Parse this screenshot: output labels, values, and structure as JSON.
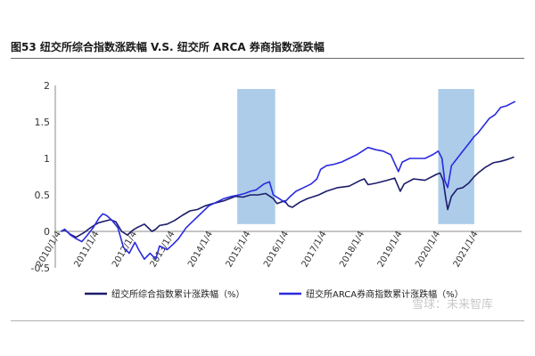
{
  "title": "图53 纽交所综合指数涨跌幅 V.S. 纽交所 ARCA 券商指数涨跌幅",
  "watermark": "雪球：未来智库",
  "colors": {
    "series_nyse": "#1c1c6b",
    "series_arca": "#2a2ae0",
    "highlight": "#9ec3e6",
    "axis": "#888888"
  },
  "chart_data": {
    "type": "line",
    "title": "图53 纽交所综合指数涨跌幅 V.S. 纽交所 ARCA 券商指数涨跌幅",
    "x_range": [
      2009.85,
      2022.15
    ],
    "ylim": [
      -0.5,
      2
    ],
    "yticks": [
      -0.5,
      0,
      0.5,
      1,
      1.5,
      2
    ],
    "ytick_labels": [
      "-0.5",
      "0",
      "0.5",
      "1",
      "1.5",
      "2"
    ],
    "xticks": [
      2010,
      2011,
      2012,
      2013,
      2014,
      2015,
      2016,
      2017,
      2018,
      2019,
      2020,
      2021
    ],
    "xtick_labels": [
      "2010/1/4",
      "2011/1/4",
      "2012/1/4",
      "2013/1/4",
      "2014/1/4",
      "2015/1/4",
      "2016/1/4",
      "2017/1/4",
      "2018/1/4",
      "2019/1/4",
      "2020/1/4",
      "2021/1/4"
    ],
    "highlight_periods": [
      [
        2014.65,
        2015.65
      ],
      [
        2019.95,
        2020.9
      ]
    ],
    "legend_position": "bottom",
    "series": [
      {
        "name": "纽交所综合指数累计涨跌幅（%）",
        "color": "#1c1c6b",
        "x": [
          2010.0,
          2010.1,
          2010.25,
          2010.4,
          2010.5,
          2010.6,
          2010.75,
          2010.9,
          2011.0,
          2011.15,
          2011.3,
          2011.45,
          2011.6,
          2011.75,
          2011.9,
          2012.0,
          2012.2,
          2012.4,
          2012.5,
          2012.6,
          2012.8,
          2013.0,
          2013.2,
          2013.4,
          2013.6,
          2013.8,
          2014.0,
          2014.3,
          2014.6,
          2014.8,
          2015.0,
          2015.2,
          2015.4,
          2015.6,
          2015.7,
          2015.9,
          2016.0,
          2016.1,
          2016.3,
          2016.5,
          2016.8,
          2017.0,
          2017.3,
          2017.6,
          2017.9,
          2018.0,
          2018.1,
          2018.3,
          2018.6,
          2018.8,
          2018.95,
          2019.05,
          2019.3,
          2019.6,
          2019.9,
          2020.0,
          2020.08,
          2020.15,
          2020.2,
          2020.3,
          2020.45,
          2020.6,
          2020.75,
          2020.9,
          2021.0,
          2021.2,
          2021.4,
          2021.6,
          2021.8,
          2021.95
        ],
        "y": [
          0.0,
          0.02,
          -0.04,
          -0.08,
          -0.05,
          -0.02,
          0.04,
          0.09,
          0.12,
          0.14,
          0.16,
          0.13,
          0.0,
          -0.05,
          0.02,
          0.05,
          0.1,
          0.0,
          0.03,
          0.08,
          0.1,
          0.15,
          0.22,
          0.28,
          0.3,
          0.35,
          0.38,
          0.42,
          0.48,
          0.47,
          0.5,
          0.5,
          0.52,
          0.45,
          0.38,
          0.42,
          0.35,
          0.33,
          0.4,
          0.45,
          0.5,
          0.55,
          0.6,
          0.62,
          0.7,
          0.72,
          0.64,
          0.66,
          0.7,
          0.73,
          0.55,
          0.65,
          0.72,
          0.7,
          0.78,
          0.8,
          0.7,
          0.45,
          0.3,
          0.48,
          0.58,
          0.6,
          0.66,
          0.75,
          0.8,
          0.88,
          0.94,
          0.96,
          0.99,
          1.02
        ]
      },
      {
        "name": "纽交所ARCA券商指数累计涨跌幅（%）",
        "color": "#2a2ae0",
        "x": [
          2010.0,
          2010.1,
          2010.25,
          2010.4,
          2010.55,
          2010.7,
          2010.85,
          2011.0,
          2011.1,
          2011.2,
          2011.35,
          2011.5,
          2011.65,
          2011.8,
          2011.95,
          2012.05,
          2012.2,
          2012.35,
          2012.5,
          2012.6,
          2012.8,
          2012.95,
          2013.1,
          2013.3,
          2013.5,
          2013.7,
          2013.9,
          2014.1,
          2014.3,
          2014.5,
          2014.7,
          2014.85,
          2015.0,
          2015.15,
          2015.35,
          2015.5,
          2015.6,
          2015.75,
          2015.9,
          2016.05,
          2016.2,
          2016.4,
          2016.6,
          2016.75,
          2016.85,
          2017.0,
          2017.2,
          2017.4,
          2017.6,
          2017.8,
          2017.95,
          2018.1,
          2018.3,
          2018.5,
          2018.7,
          2018.9,
          2019.0,
          2019.2,
          2019.4,
          2019.6,
          2019.8,
          2019.95,
          2020.05,
          2020.12,
          2020.2,
          2020.3,
          2020.45,
          2020.6,
          2020.75,
          2020.9,
          2021.0,
          2021.15,
          2021.3,
          2021.45,
          2021.6,
          2021.75,
          2021.9,
          2021.98
        ],
        "y": [
          0.0,
          0.03,
          -0.05,
          -0.1,
          -0.14,
          -0.05,
          0.05,
          0.18,
          0.24,
          0.22,
          0.15,
          0.05,
          -0.22,
          -0.3,
          -0.15,
          -0.25,
          -0.38,
          -0.3,
          -0.38,
          -0.2,
          -0.25,
          -0.18,
          -0.1,
          0.05,
          0.15,
          0.25,
          0.35,
          0.4,
          0.45,
          0.48,
          0.5,
          0.52,
          0.55,
          0.57,
          0.65,
          0.68,
          0.5,
          0.45,
          0.4,
          0.48,
          0.55,
          0.6,
          0.65,
          0.72,
          0.85,
          0.9,
          0.92,
          0.95,
          1.0,
          1.05,
          1.1,
          1.15,
          1.12,
          1.1,
          1.05,
          0.82,
          0.95,
          1.0,
          1.0,
          1.0,
          1.05,
          1.1,
          1.0,
          0.7,
          0.6,
          0.9,
          1.0,
          1.1,
          1.2,
          1.3,
          1.35,
          1.45,
          1.55,
          1.6,
          1.7,
          1.72,
          1.76,
          1.78
        ]
      }
    ]
  }
}
